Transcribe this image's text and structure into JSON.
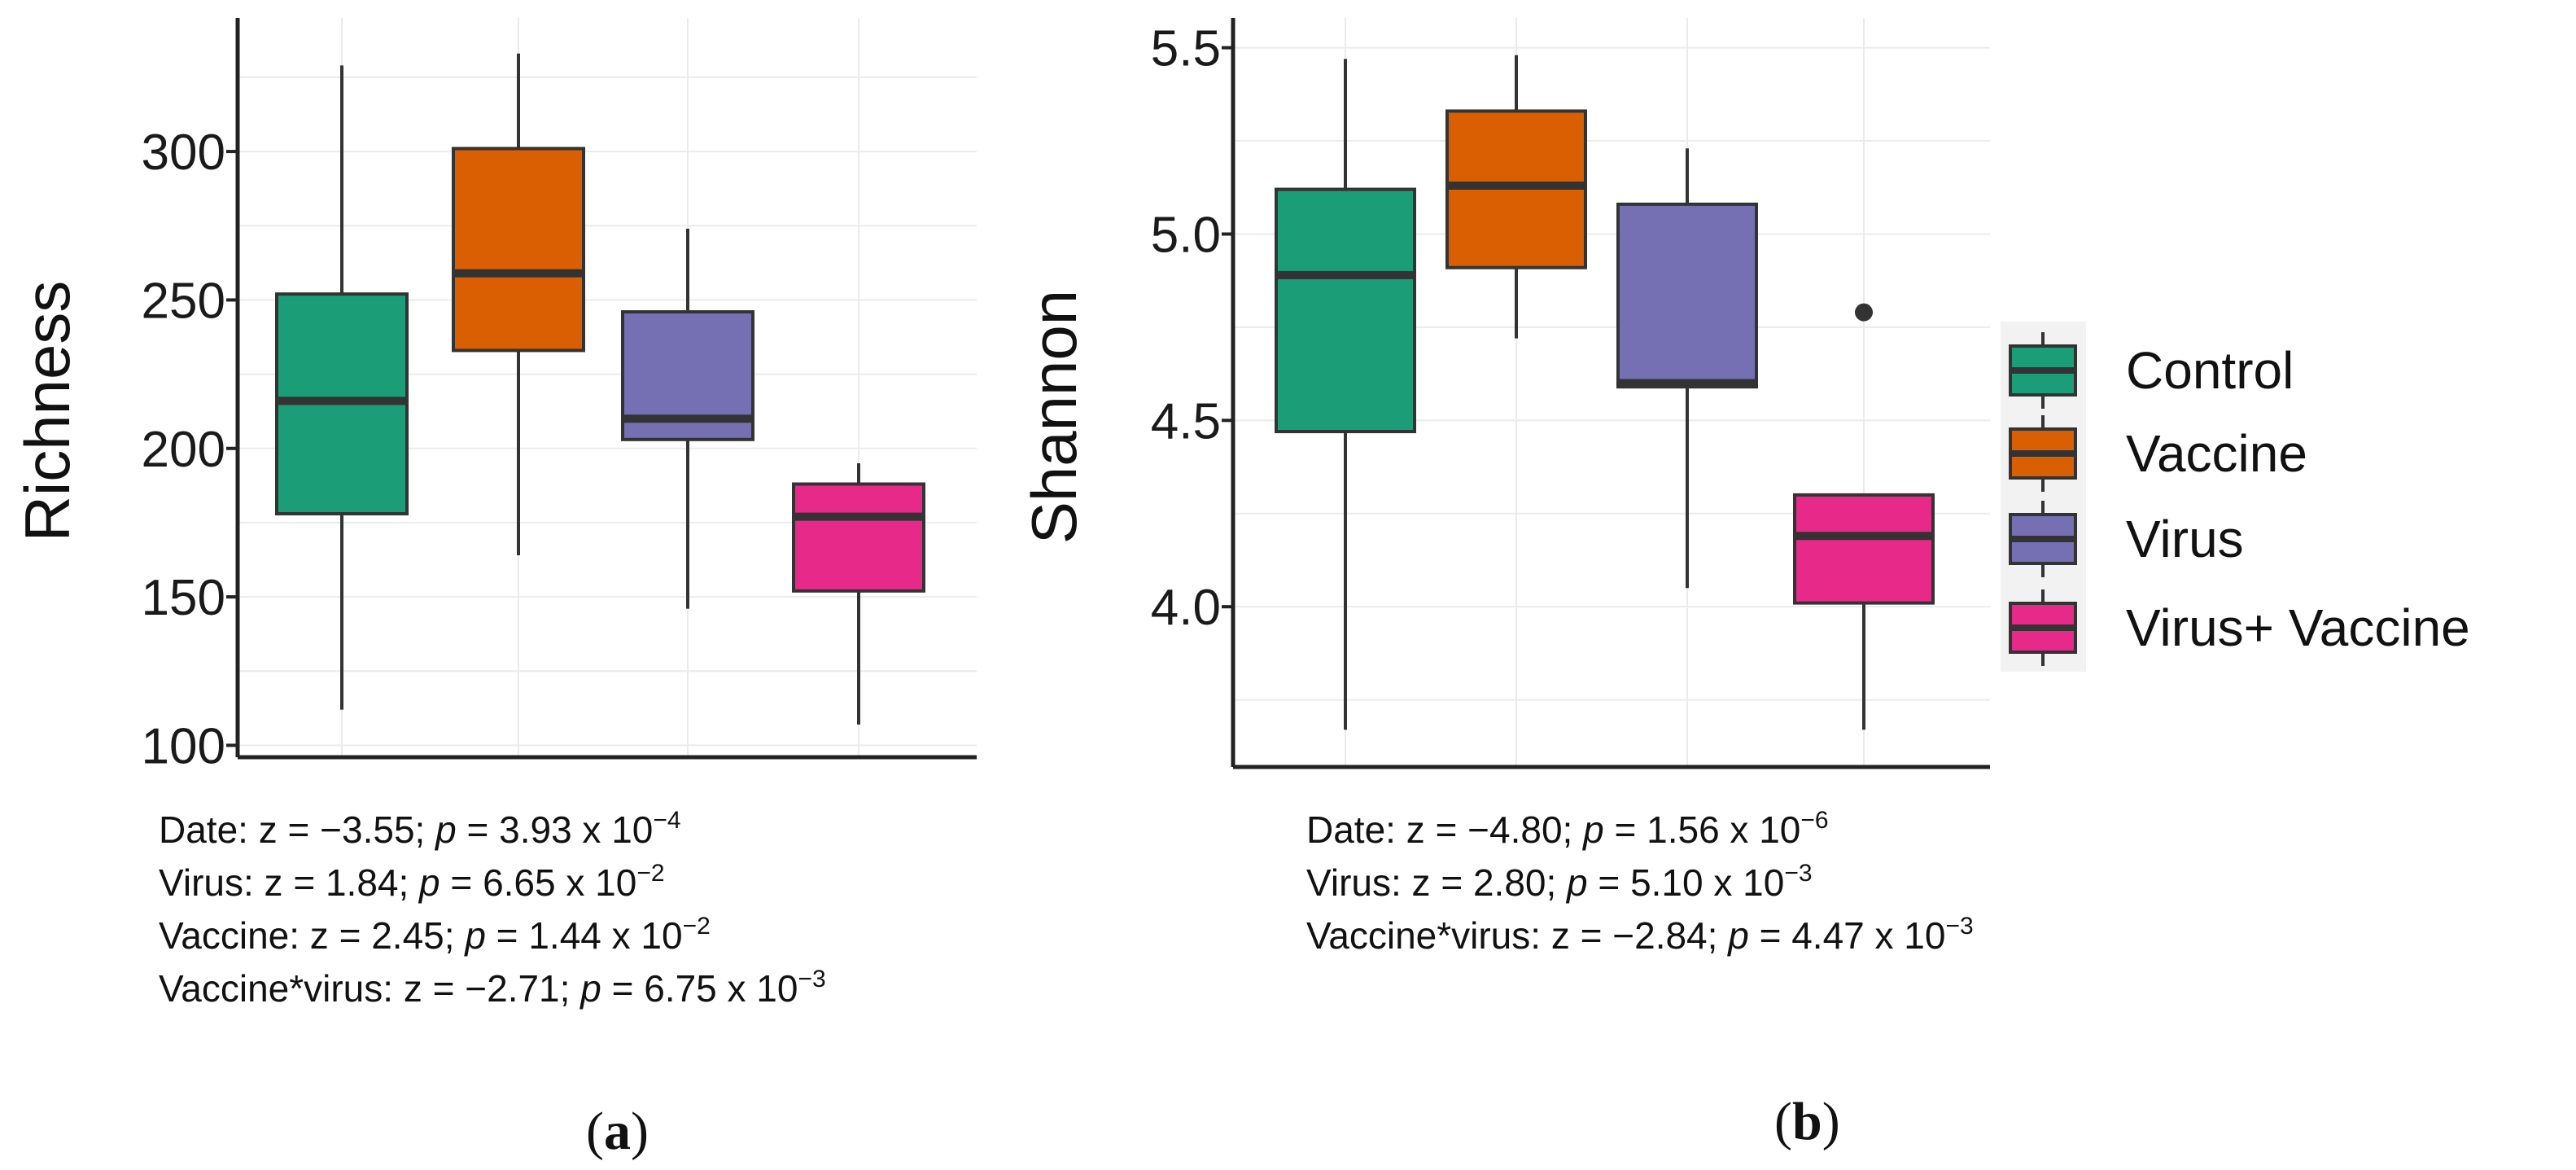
{
  "colors": {
    "Control": "#1b9e77",
    "Vaccine": "#d95f02",
    "Virus": "#7570b3",
    "Virus+ Vaccine": "#e7298a",
    "outline": "#333333",
    "grid": "#ebebeb",
    "axis": "#222222"
  },
  "legend": {
    "items": [
      "Control",
      "Vaccine",
      "Virus",
      "Virus+ Vaccine"
    ]
  },
  "chart_data": [
    {
      "type": "box",
      "panel": "a",
      "ylabel": "Richness",
      "xlabel": "",
      "ylim": [
        96,
        345
      ],
      "yticks": [
        100,
        150,
        200,
        250,
        300
      ],
      "ytick_labels": [
        "100",
        "150",
        "200",
        "250",
        "300"
      ],
      "categories": [
        "Control",
        "Vaccine",
        "Virus",
        "Virus+ Vaccine"
      ],
      "boxes": [
        {
          "group": "Control",
          "whisker_low": 112,
          "q1": 178,
          "median": 216,
          "q3": 252,
          "whisker_high": 329,
          "outliers": []
        },
        {
          "group": "Vaccine",
          "whisker_low": 164,
          "q1": 233,
          "median": 259,
          "q3": 301,
          "whisker_high": 333,
          "outliers": []
        },
        {
          "group": "Virus",
          "whisker_low": 146,
          "q1": 203,
          "median": 210,
          "q3": 246,
          "whisker_high": 274,
          "outliers": []
        },
        {
          "group": "Virus+ Vaccine",
          "whisker_low": 107,
          "q1": 152,
          "median": 177,
          "q3": 188,
          "whisker_high": 195,
          "outliers": []
        }
      ]
    },
    {
      "type": "box",
      "panel": "b",
      "ylabel": "Shannon",
      "xlabel": "",
      "ylim": [
        3.57,
        5.58
      ],
      "yticks": [
        4.0,
        4.5,
        5.0,
        5.5
      ],
      "ytick_labels": [
        "4.0",
        "4.5",
        "5.0",
        "5.5"
      ],
      "categories": [
        "Control",
        "Vaccine",
        "Virus",
        "Virus+ Vaccine"
      ],
      "boxes": [
        {
          "group": "Control",
          "whisker_low": 3.67,
          "q1": 4.47,
          "median": 4.89,
          "q3": 5.12,
          "whisker_high": 5.47,
          "outliers": []
        },
        {
          "group": "Vaccine",
          "whisker_low": 4.72,
          "q1": 4.91,
          "median": 5.13,
          "q3": 5.33,
          "whisker_high": 5.48,
          "outliers": []
        },
        {
          "group": "Virus",
          "whisker_low": 4.05,
          "q1": 4.59,
          "median": 4.6,
          "q3": 5.08,
          "whisker_high": 5.23,
          "outliers": []
        },
        {
          "group": "Virus+ Vaccine",
          "whisker_low": 3.67,
          "q1": 4.01,
          "median": 4.19,
          "q3": 4.3,
          "whisker_high": 4.3,
          "outliers": [
            4.79
          ]
        }
      ]
    }
  ],
  "stats_a": [
    {
      "label": "Date: z = −3.55; ",
      "p": "p",
      "mid": " = 3.93 x 10",
      "exp": "−4"
    },
    {
      "label": "Virus: z = 1.84; ",
      "p": "p",
      "mid": " = 6.65 x 10",
      "exp": "−2"
    },
    {
      "label": "Vaccine: z = 2.45; ",
      "p": "p",
      "mid": " = 1.44 x 10",
      "exp": "−2"
    },
    {
      "label": "Vaccine*virus: z = −2.71; ",
      "p": "p",
      "mid": " = 6.75 x 10",
      "exp": "−3"
    }
  ],
  "stats_b": [
    {
      "label": "Date: z = −4.80; ",
      "p": "p",
      "mid": " = 1.56 x 10",
      "exp": "−6"
    },
    {
      "label": "Virus: z = 2.80; ",
      "p": "p",
      "mid": " = 5.10 x 10",
      "exp": "−3"
    },
    {
      "label": "Vaccine*virus: z = −2.84; ",
      "p": "p",
      "mid": " = 4.47 x 10",
      "exp": "−3"
    }
  ],
  "panel_labels": {
    "a": "a",
    "b": "b"
  }
}
